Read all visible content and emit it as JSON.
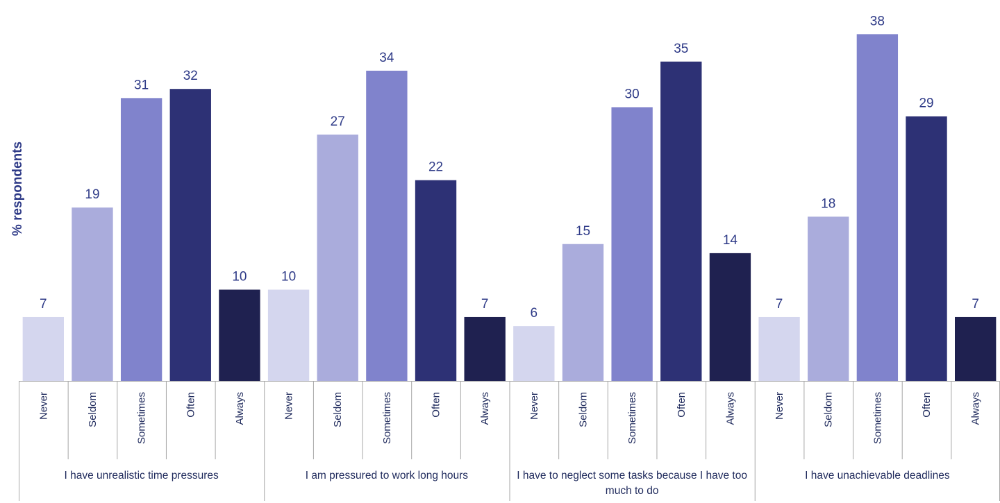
{
  "chart_data": {
    "type": "bar",
    "title": "",
    "xlabel": "",
    "ylabel": "% respondents",
    "ylim": [
      0,
      40
    ],
    "grid": false,
    "legend": "none",
    "categories": [
      "Never",
      "Seldom",
      "Sometimes",
      "Often",
      "Always"
    ],
    "groups": [
      {
        "label": "I have unrealistic time pressures",
        "values": [
          7,
          19,
          31,
          32,
          10
        ]
      },
      {
        "label": "I am pressured to work long hours",
        "values": [
          10,
          27,
          34,
          22,
          7
        ]
      },
      {
        "label": "I have to neglect some tasks because I have too much to do",
        "values": [
          6,
          15,
          30,
          35,
          14
        ]
      },
      {
        "label": "I have unachievable deadlines",
        "values": [
          7,
          18,
          38,
          29,
          7
        ]
      }
    ],
    "colors": [
      "#d4d6ee",
      "#aaacdc",
      "#8083cc",
      "#2d3175",
      "#1f2150"
    ],
    "text_color": "#2e3a87",
    "axis_color": "#a6a6a6"
  }
}
